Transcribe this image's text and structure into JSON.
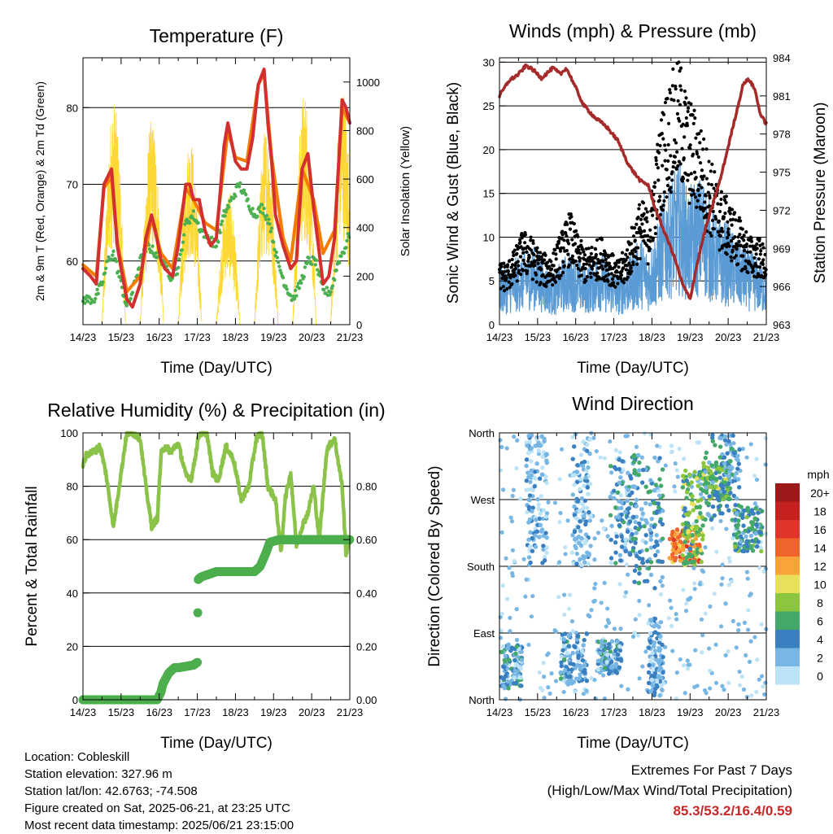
{
  "time_labels": [
    "14/23",
    "15/23",
    "16/23",
    "17/23",
    "18/23",
    "19/23",
    "20/23",
    "21/23"
  ],
  "x_label": "Time (Day/UTC)",
  "colors": {
    "temp_2m": "#d32f2f",
    "temp_9m": "#f57c00",
    "dewpoint": "#4caf50",
    "solar": "#fdd835",
    "wind": "#5b9bd5",
    "gust": "#000000",
    "pressure": "#a52a2a",
    "rh": "#8bc34a",
    "precip": "#4cae4c"
  },
  "info": {
    "location": "Location: Cobleskill",
    "elevation": "Station elevation: 327.96 m",
    "latlon": "Station lat/lon: 42.6763; -74.508",
    "created": "Figure created on Sat, 2025-06-21, at 23:25 UTC",
    "recent": "Most recent data timestamp: 2025/06/21 23:15:00"
  },
  "extremes": {
    "title": "Extremes For Past 7 Days",
    "subtitle": "(High/Low/Max Wind/Total Precipitation)",
    "values": "85.3/53.2/16.4/0.59"
  },
  "chart_data": [
    {
      "type": "line",
      "title": "Temperature (F)",
      "xlabel": "Time (Day/UTC)",
      "ylabel": "2m & 9m T (Red, Orange) & 2m Td (Green)",
      "y2label": "Solar Insolation (Yellow)",
      "ylim": [
        51.7,
        86.5
      ],
      "yticks": [
        60,
        70,
        80
      ],
      "y2lim": [
        0,
        1100
      ],
      "y2ticks": [
        0,
        200,
        400,
        600,
        800,
        1000
      ],
      "xlim": [
        0,
        7
      ],
      "grid": true,
      "series": [
        {
          "color_key": "temp_2m",
          "x": [
            0,
            0.2,
            0.35,
            0.55,
            0.75,
            0.9,
            1,
            1.15,
            1.3,
            1.5,
            1.65,
            1.8,
            1.9,
            2.05,
            2.15,
            2.35,
            2.5,
            2.7,
            2.8,
            2.9,
            3.05,
            3.2,
            3.35,
            3.5,
            3.7,
            3.8,
            4,
            4.15,
            4.3,
            4.45,
            4.6,
            4.75,
            4.85,
            4.95,
            5.05,
            5.25,
            5.45,
            5.6,
            5.75,
            5.9,
            6.05,
            6.3,
            6.45,
            6.6,
            6.8,
            6.9,
            7
          ],
          "y": [
            59,
            58,
            57,
            70,
            72,
            62,
            59,
            55,
            54,
            57,
            63,
            66,
            64,
            60,
            59,
            58,
            62,
            70,
            70,
            68,
            68,
            64,
            62,
            63,
            75,
            78,
            73,
            72,
            72,
            76,
            83,
            85,
            78,
            73,
            66,
            62,
            59,
            60,
            72,
            74,
            67,
            57,
            58,
            63,
            81,
            80,
            78
          ]
        },
        {
          "color_key": "temp_9m",
          "x": [
            0,
            0.35,
            0.55,
            0.75,
            0.9,
            1.15,
            1.5,
            1.8,
            2.05,
            2.35,
            2.7,
            2.9,
            3.2,
            3.5,
            3.8,
            4,
            4.3,
            4.6,
            4.75,
            4.95,
            5.25,
            5.45,
            5.75,
            6.05,
            6.3,
            6.6,
            6.8,
            7
          ],
          "y": [
            59.5,
            58,
            69.5,
            71,
            62.5,
            56,
            58,
            65.5,
            61,
            59,
            69.5,
            68,
            65,
            64,
            77,
            73.5,
            73,
            83,
            84.5,
            73.5,
            63,
            60,
            72,
            68,
            61,
            64,
            80,
            78
          ]
        },
        {
          "color_key": "dewpoint",
          "x": [
            0,
            0.3,
            0.5,
            0.65,
            0.8,
            0.95,
            1.15,
            1.3,
            1.5,
            1.7,
            1.9,
            2.1,
            2.3,
            2.5,
            2.7,
            2.9,
            3.1,
            3.3,
            3.5,
            3.7,
            3.9,
            4.1,
            4.3,
            4.5,
            4.7,
            4.9,
            5.1,
            5.3,
            5.5,
            5.7,
            5.9,
            6.1,
            6.3,
            6.5,
            6.7,
            6.9,
            7
          ],
          "y": [
            55,
            55,
            57,
            60,
            61,
            58,
            54,
            56,
            60,
            62,
            61,
            60,
            58,
            59,
            65,
            66,
            64,
            63,
            62,
            66,
            68,
            70,
            68,
            66,
            67,
            65,
            60,
            57,
            55,
            57,
            60,
            60,
            56,
            56,
            60,
            62,
            64
          ]
        }
      ],
      "solar": {
        "color_key": "solar",
        "days": [
          0,
          1,
          2,
          3,
          4,
          5,
          6
        ],
        "peaks": [
          930,
          850,
          780,
          560,
          830,
          970,
          1000
        ]
      }
    },
    {
      "type": "line",
      "title": "Winds (mph) & Pressure (mb)",
      "xlabel": "Time (Day/UTC)",
      "ylabel": "Sonic Wind & Gust (Blue, Black)",
      "y2label": "Station Pressure (Maroon)",
      "ylim": [
        0,
        30.5
      ],
      "yticks": [
        0,
        5,
        10,
        15,
        20,
        25,
        30
      ],
      "y2lim": [
        963,
        984
      ],
      "y2ticks": [
        963,
        966,
        969,
        972,
        975,
        978,
        981,
        984
      ],
      "xlim": [
        0,
        7
      ],
      "grid": true,
      "series": [
        {
          "name": "Pressure",
          "color_key": "pressure",
          "x": [
            0,
            0.25,
            0.5,
            0.7,
            0.9,
            1.1,
            1.4,
            1.6,
            1.75,
            1.9,
            2.2,
            2.5,
            2.8,
            3.1,
            3.4,
            3.7,
            3.9,
            4.1,
            4.3,
            4.5,
            4.6,
            4.8,
            5,
            5.2,
            5.4,
            5.6,
            5.8,
            6,
            6.2,
            6.4,
            6.55,
            6.7,
            6.85,
            7
          ],
          "y": [
            981,
            982.2,
            982.7,
            983.4,
            983,
            982.4,
            983.2,
            982.7,
            983.2,
            982.3,
            980.3,
            979.3,
            978.6,
            977.5,
            975.5,
            974.3,
            974,
            972,
            970.5,
            969,
            968.2,
            966.2,
            965,
            968,
            970.5,
            972.5,
            974.5,
            977,
            979.5,
            982,
            982.3,
            981.5,
            979.5,
            978.8
          ]
        }
      ],
      "wind_base": [
        4,
        4,
        4.5,
        5,
        5.5,
        5,
        4,
        3.5,
        4.5,
        5,
        4.5,
        4,
        4.5,
        5,
        4,
        3.5,
        4,
        5,
        6,
        5,
        6.5,
        9,
        10,
        11,
        9,
        10,
        10,
        8,
        7,
        7,
        6,
        5.5,
        5,
        4.5,
        4
      ],
      "gust_base": [
        5,
        5,
        6,
        7.5,
        7,
        6,
        5.5,
        6,
        7.5,
        9,
        7,
        6,
        6.5,
        7,
        6,
        5,
        6,
        8,
        10,
        9,
        14,
        18,
        20,
        21,
        18,
        17,
        15,
        13,
        11,
        10,
        9,
        8,
        7,
        7,
        6
      ]
    },
    {
      "type": "line",
      "title": "Relative Humidity (%) & Precipitation (in)",
      "xlabel": "Time (Day/UTC)",
      "ylabel": "Percent & Total Rainfall",
      "ylim": [
        0,
        100
      ],
      "yticks": [
        0,
        20,
        40,
        60,
        80,
        100
      ],
      "y2lim": [
        0,
        1
      ],
      "y2ticks": [
        "0.00",
        "0.20",
        "0.40",
        "0.60",
        "0.80"
      ],
      "xlim": [
        0,
        7
      ],
      "grid": true,
      "series": [
        {
          "name": "Relative Humidity",
          "color_key": "rh",
          "x": [
            0,
            0.1,
            0.3,
            0.45,
            0.6,
            0.8,
            0.95,
            1.15,
            1.3,
            1.5,
            1.65,
            1.8,
            1.95,
            2.05,
            2.15,
            2.3,
            2.5,
            2.7,
            2.85,
            3.05,
            3.25,
            3.4,
            3.55,
            3.75,
            3.95,
            4.15,
            4.35,
            4.55,
            4.7,
            4.85,
            5.05,
            5.2,
            5.3,
            5.45,
            5.6,
            5.75,
            5.9,
            6.05,
            6.2,
            6.4,
            6.6,
            6.8,
            6.9,
            7
          ],
          "y": [
            88,
            92,
            93,
            95,
            85,
            65,
            80,
            100,
            100,
            98,
            80,
            65,
            68,
            92,
            95,
            93,
            96,
            84,
            83,
            100,
            100,
            85,
            82,
            95,
            90,
            75,
            80,
            98,
            100,
            80,
            75,
            55,
            75,
            85,
            58,
            65,
            70,
            80,
            60,
            94,
            98,
            80,
            55,
            60
          ]
        },
        {
          "name": "Total Rainfall",
          "color_key": "precip",
          "x": [
            0,
            1.95,
            2.05,
            2.1,
            2.25,
            2.4,
            2.5,
            2.9,
            3.0,
            3.02,
            3.1,
            3.3,
            3.5,
            3.8,
            4.5,
            4.65,
            4.8,
            4.9,
            5.15,
            5.5,
            6,
            7
          ],
          "y": [
            0,
            0,
            0.03,
            0.06,
            0.1,
            0.12,
            0.12,
            0.13,
            0.14,
            0.45,
            0.46,
            0.47,
            0.48,
            0.48,
            0.48,
            0.5,
            0.55,
            0.59,
            0.6,
            0.6,
            0.6,
            0.6
          ]
        }
      ]
    },
    {
      "type": "scatter",
      "title": "Wind Direction",
      "xlabel": "Time (Day/UTC)",
      "ylabel": "Direction (Colored By Speed)",
      "ylim": [
        0,
        360
      ],
      "yticks": [
        0,
        90,
        180,
        270,
        360
      ],
      "ytick_labels": [
        "North",
        "East",
        "South",
        "West",
        "North"
      ],
      "xlim": [
        0,
        7
      ],
      "grid": true,
      "legend": {
        "title": "mph",
        "position": "right",
        "labels": [
          "20+",
          "18",
          "16",
          "14",
          "12",
          "10",
          "8",
          "6",
          "4",
          "2",
          "0"
        ],
        "colors": [
          "#9e1a1a",
          "#c62121",
          "#e0342a",
          "#f0652b",
          "#f9a33a",
          "#e8e05a",
          "#8cc63f",
          "#44a868",
          "#3a7fc0",
          "#78b6e4",
          "#bde3f6"
        ]
      },
      "clusters": [
        {
          "x": [
            0.05,
            0.6
          ],
          "y": [
            15,
            75
          ],
          "speed": 3
        },
        {
          "x": [
            0.7,
            1.25
          ],
          "y": [
            180,
            359
          ],
          "speed": 2
        },
        {
          "x": [
            1.6,
            2.3
          ],
          "y": [
            20,
            90
          ],
          "speed": 3
        },
        {
          "x": [
            1.9,
            2.4
          ],
          "y": [
            180,
            359
          ],
          "speed": 2
        },
        {
          "x": [
            2.55,
            3.2
          ],
          "y": [
            35,
            80
          ],
          "speed": 3
        },
        {
          "x": [
            2.9,
            3.6
          ],
          "y": [
            180,
            330
          ],
          "speed": 3
        },
        {
          "x": [
            3.5,
            4.3
          ],
          "y": [
            150,
            330
          ],
          "speed": 4
        },
        {
          "x": [
            4.45,
            5.25
          ],
          "y": [
            185,
            230
          ],
          "speed": 13
        },
        {
          "x": [
            4.8,
            5.35
          ],
          "y": [
            180,
            310
          ],
          "speed": 7
        },
        {
          "x": [
            5.35,
            6.05
          ],
          "y": [
            270,
            320
          ],
          "speed": 7
        },
        {
          "x": [
            5.4,
            6.3
          ],
          "y": [
            240,
            359
          ],
          "speed": 4
        },
        {
          "x": [
            6.15,
            6.9
          ],
          "y": [
            200,
            260
          ],
          "speed": 5
        },
        {
          "x": [
            3.9,
            4.3
          ],
          "y": [
            5,
            110
          ],
          "speed": 2
        }
      ]
    }
  ]
}
